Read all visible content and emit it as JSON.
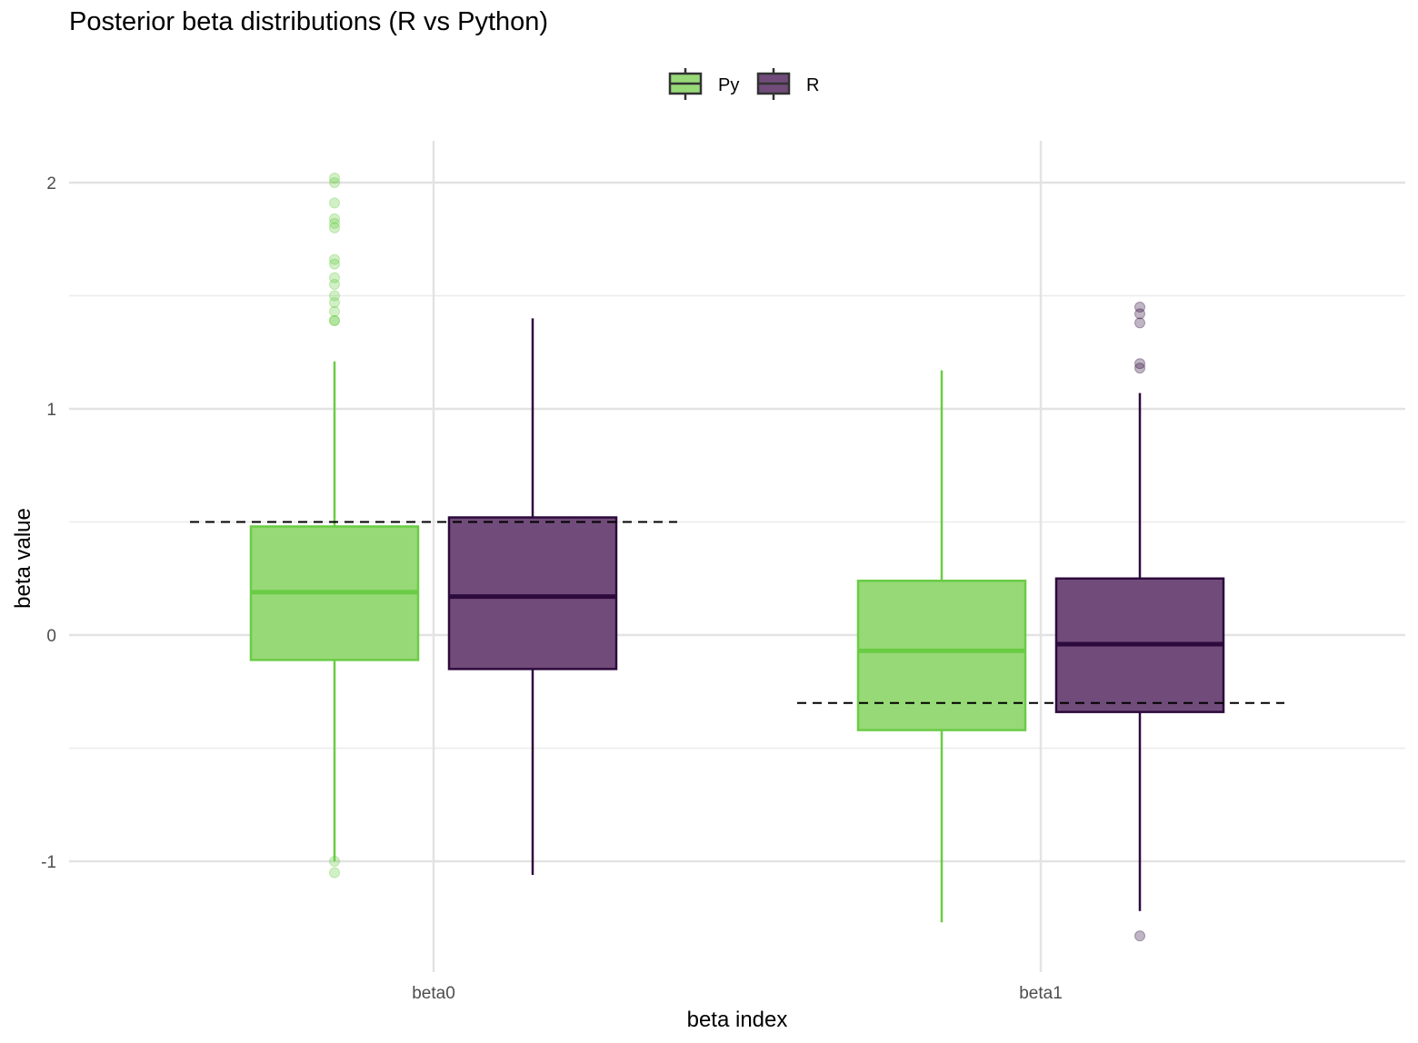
{
  "chart_data": {
    "type": "box",
    "title": "Posterior beta distributions (R vs Python)",
    "xlabel": "beta index",
    "ylabel": "beta value",
    "categories": [
      "beta0",
      "beta1"
    ],
    "y_ticks": [
      -1,
      0,
      1,
      2
    ],
    "y_tick_labels": [
      "-1",
      "0",
      "1",
      "2"
    ],
    "ylim": [
      -1.5,
      2.2
    ],
    "grid": true,
    "legend_position": "top",
    "series": [
      {
        "name": "Py",
        "color": "#6ACC45",
        "fill": "#97D977",
        "boxes": [
          {
            "category": "beta0",
            "lower_whisker": -1.0,
            "q1": -0.11,
            "median": 0.19,
            "q3": 0.48,
            "upper_whisker": 1.21,
            "outliers": [
              2.02,
              2.0,
              1.91,
              1.84,
              1.82,
              1.8,
              1.66,
              1.64,
              1.58,
              1.55,
              1.5,
              1.47,
              1.43,
              1.39,
              1.39,
              -1.0,
              -1.05
            ]
          },
          {
            "category": "beta1",
            "lower_whisker": -1.27,
            "q1": -0.42,
            "median": -0.07,
            "q3": 0.24,
            "upper_whisker": 1.17,
            "outliers": []
          }
        ]
      },
      {
        "name": "R",
        "color": "#2D0A3D",
        "fill": "#714C7A",
        "boxes": [
          {
            "category": "beta0",
            "lower_whisker": -1.06,
            "q1": -0.15,
            "median": 0.17,
            "q3": 0.52,
            "upper_whisker": 1.4,
            "outliers": []
          },
          {
            "category": "beta1",
            "lower_whisker": -1.22,
            "q1": -0.34,
            "median": -0.04,
            "q3": 0.25,
            "upper_whisker": 1.07,
            "outliers": [
              1.45,
              1.42,
              1.38,
              1.2,
              1.18,
              -1.33
            ]
          }
        ]
      }
    ],
    "reference_lines": [
      {
        "category": "beta0",
        "value": 0.5,
        "style": "dashed",
        "color": "#000000"
      },
      {
        "category": "beta1",
        "value": -0.3,
        "style": "dashed",
        "color": "#000000"
      }
    ]
  }
}
